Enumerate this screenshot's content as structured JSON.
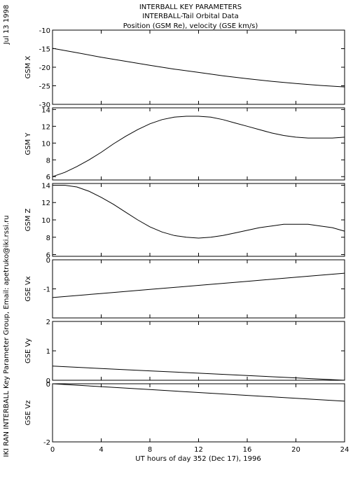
{
  "header": {
    "line1": "INTERBALL KEY PARAMETERS",
    "line2": "INTERBALL-Tail Orbital Data",
    "line3": "Position (GSM Re), velocity (GSE km/s)"
  },
  "side_date": "Jul 13 1998",
  "side_credit": "IKI RAN INTERBALL Key Parameter Group, Email: apetruko@iki.rssi.ru",
  "x_axis": {
    "label": "UT hours of day 352 (Dec 17), 1996",
    "range": [
      0,
      24
    ],
    "ticks": [
      "0",
      "4",
      "8",
      "12",
      "16",
      "20",
      "24"
    ]
  },
  "chart_data": [
    {
      "type": "line",
      "ylabel": "GSM X",
      "ylim": [
        -30,
        -10
      ],
      "yticks": [
        "-10",
        "-15",
        "-20",
        "-25",
        "-30"
      ],
      "x": [
        0,
        2,
        4,
        6,
        8,
        10,
        12,
        14,
        16,
        18,
        20,
        22,
        24
      ],
      "values": [
        -14.9,
        -16.1,
        -17.3,
        -18.4,
        -19.5,
        -20.5,
        -21.4,
        -22.3,
        -23.1,
        -23.8,
        -24.4,
        -24.9,
        -25.3
      ]
    },
    {
      "type": "line",
      "ylabel": "GSM Y",
      "ylim": [
        5.6,
        14.2
      ],
      "yticks": [
        "14",
        "12",
        "10",
        "8",
        "6"
      ],
      "x": [
        0,
        1,
        2,
        3,
        4,
        5,
        6,
        7,
        8,
        9,
        10,
        11,
        12,
        13,
        14,
        15,
        16,
        17,
        18,
        19,
        20,
        21,
        22,
        23,
        24
      ],
      "values": [
        6.0,
        6.5,
        7.2,
        8.0,
        8.9,
        9.9,
        10.8,
        11.6,
        12.3,
        12.8,
        13.1,
        13.2,
        13.2,
        13.1,
        12.8,
        12.4,
        12.0,
        11.6,
        11.2,
        10.9,
        10.7,
        10.6,
        10.6,
        10.6,
        10.7
      ]
    },
    {
      "type": "line",
      "ylabel": "GSM Z",
      "ylim": [
        5.8,
        14.2
      ],
      "yticks": [
        "14",
        "12",
        "10",
        "8",
        "6"
      ],
      "x": [
        0,
        1,
        2,
        3,
        4,
        5,
        6,
        7,
        8,
        9,
        10,
        11,
        12,
        13,
        14,
        15,
        16,
        17,
        18,
        19,
        20,
        21,
        22,
        23,
        24
      ],
      "values": [
        14.0,
        14.0,
        13.8,
        13.3,
        12.6,
        11.8,
        10.9,
        10.0,
        9.2,
        8.6,
        8.2,
        8.0,
        7.9,
        8.0,
        8.2,
        8.5,
        8.8,
        9.1,
        9.3,
        9.5,
        9.5,
        9.5,
        9.3,
        9.1,
        8.7
      ]
    },
    {
      "type": "line",
      "ylabel": "GSE Vx",
      "ylim": [
        -2,
        0
      ],
      "yticks": [
        "0",
        "-1"
      ],
      "x": [
        0,
        4,
        8,
        12,
        16,
        20,
        24
      ],
      "values": [
        -1.3,
        -1.16,
        -1.02,
        -0.88,
        -0.74,
        -0.6,
        -0.46
      ]
    },
    {
      "type": "line",
      "ylabel": "GSE Vy",
      "ylim": [
        0,
        2
      ],
      "yticks": [
        "2",
        "1",
        "0"
      ],
      "x": [
        0,
        4,
        8,
        12,
        16,
        20,
        24
      ],
      "values": [
        0.48,
        0.4,
        0.32,
        0.24,
        0.16,
        0.08,
        0.0
      ]
    },
    {
      "type": "line",
      "ylabel": "GSE Vz",
      "ylim": [
        -2,
        0
      ],
      "yticks": [
        "0",
        "-2"
      ],
      "x": [
        0,
        4,
        8,
        12,
        16,
        20,
        24
      ],
      "values": [
        0.0,
        -0.1,
        -0.2,
        -0.3,
        -0.4,
        -0.5,
        -0.6
      ]
    }
  ]
}
